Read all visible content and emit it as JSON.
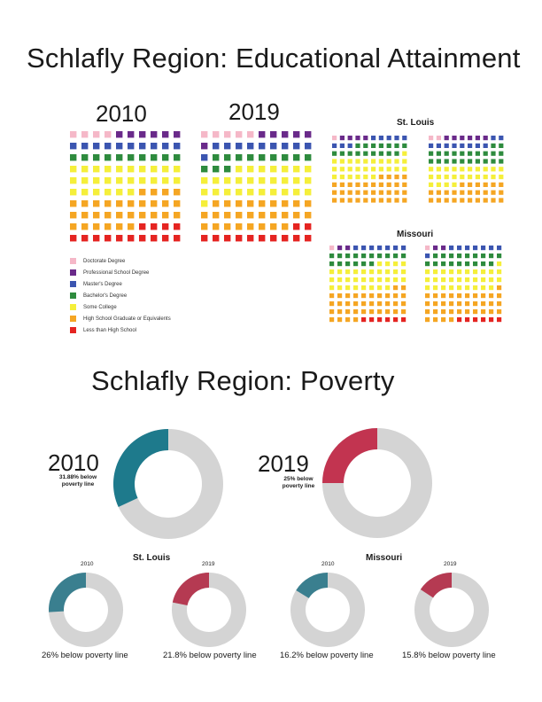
{
  "edu": {
    "title": "Schlafly Region: Educational Attainment",
    "year_2010": "2010",
    "year_2019": "2019",
    "stlouis_title": "St. Louis",
    "missouri_title": "Missouri"
  },
  "pov": {
    "title": "Schlafly Region: Poverty",
    "year_2010": "2010",
    "note_2010": "31.88% below poverty line",
    "year_2019": "2019",
    "note_2019": "25% below poverty line",
    "stlouis_title": "St. Louis",
    "missouri_title": "Missouri",
    "small_year_a": "2010",
    "small_year_b": "2019",
    "small_year_c": "2010",
    "small_year_d": "2019",
    "label_stl_2010": "26% below poverty line",
    "label_stl_2019": "21.8% below poverty line",
    "label_mo_2010": "16.2% below poverty line",
    "label_mo_2019": "15.8% below poverty line"
  },
  "legend": [
    {
      "label": "Doctorate Degree",
      "color": "#f5b8c8"
    },
    {
      "label": "Professional School Degree",
      "color": "#6a2a8a"
    },
    {
      "label": "Master's Degree",
      "color": "#3b55b0"
    },
    {
      "label": "Bachelor's Degree",
      "color": "#2e8b3e"
    },
    {
      "label": "Some College",
      "color": "#f5ef3a"
    },
    {
      "label": "High School Graduate or Equivalents",
      "color": "#f5a623"
    },
    {
      "label": "Less than High School",
      "color": "#e52421"
    }
  ],
  "chart_data": [
    {
      "type": "waffle",
      "title": "2010",
      "region": "Schlafly Region",
      "categories": [
        "Doctorate Degree",
        "Professional School Degree",
        "Master's Degree",
        "Bachelor's Degree",
        "Some College",
        "High School Graduate or Equivalents",
        "Less than High School"
      ],
      "values": [
        4,
        6,
        10,
        10,
        26,
        30,
        14
      ]
    },
    {
      "type": "waffle",
      "title": "2019",
      "region": "Schlafly Region",
      "categories": [
        "Doctorate Degree",
        "Professional School Degree",
        "Master's Degree",
        "Bachelor's Degree",
        "Some College",
        "High School Graduate or Equivalents",
        "Less than High School"
      ],
      "values": [
        5,
        6,
        10,
        12,
        28,
        27,
        12
      ]
    },
    {
      "type": "waffle",
      "title": "St. Louis 2010",
      "categories": [
        "Doctorate Degree",
        "Professional School Degree",
        "Master's Degree",
        "Bachelor's Degree",
        "Some College",
        "High School Graduate or Equivalents",
        "Less than High School"
      ],
      "values": [
        1,
        4,
        8,
        16,
        27,
        34,
        10
      ]
    },
    {
      "type": "waffle",
      "title": "St. Louis 2019",
      "categories": [
        "Doctorate Degree",
        "Professional School Degree",
        "Master's Degree",
        "Bachelor's Degree",
        "Some College",
        "High School Graduate or Equivalents",
        "Less than High School"
      ],
      "values": [
        2,
        6,
        10,
        22,
        24,
        28,
        8
      ]
    },
    {
      "type": "waffle",
      "title": "Missouri 2010",
      "categories": [
        "Doctorate Degree",
        "Professional School Degree",
        "Master's Degree",
        "Bachelor's Degree",
        "Some College",
        "High School Graduate or Equivalents",
        "Less than High School"
      ],
      "values": [
        1,
        2,
        7,
        16,
        32,
        36,
        6
      ]
    },
    {
      "type": "waffle",
      "title": "Missouri 2019",
      "categories": [
        "Doctorate Degree",
        "Professional School Degree",
        "Master's Degree",
        "Bachelor's Degree",
        "Some College",
        "High School Graduate or Equivalents",
        "Less than High School"
      ],
      "values": [
        1,
        2,
        8,
        18,
        30,
        35,
        6
      ]
    },
    {
      "type": "pie",
      "title": "2010",
      "region": "Schlafly Region",
      "values": [
        31.88,
        68.12
      ],
      "color": "#1e7a8c"
    },
    {
      "type": "pie",
      "title": "2019",
      "region": "Schlafly Region",
      "values": [
        25,
        75
      ],
      "color": "#c23450"
    },
    {
      "type": "pie",
      "title": "2010",
      "region": "St. Louis",
      "values": [
        26,
        74
      ],
      "color": "#3a7f8f"
    },
    {
      "type": "pie",
      "title": "2019",
      "region": "St. Louis",
      "values": [
        21.8,
        78.2
      ],
      "color": "#b53a52"
    },
    {
      "type": "pie",
      "title": "2010",
      "region": "Missouri",
      "values": [
        16.2,
        83.8
      ],
      "color": "#3a7f8f"
    },
    {
      "type": "pie",
      "title": "2019",
      "region": "Missouri",
      "values": [
        15.8,
        84.2
      ],
      "color": "#b53a52"
    }
  ]
}
